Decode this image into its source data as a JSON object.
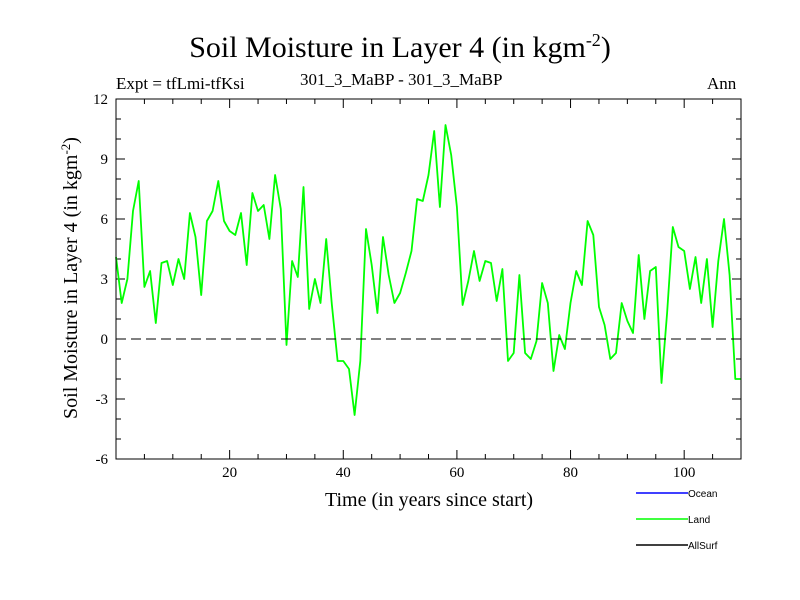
{
  "chart_data": {
    "type": "line",
    "title_main": "Soil Moisture in Layer 4 (in kgm",
    "title_sup": "-2",
    "title_close": ")",
    "experiment": "Expt = tfLmi-tfKsi",
    "subtitle": "301_3_MaBP - 301_3_MaBP",
    "season": "Ann",
    "xlabel": "Time (in years since start)",
    "ylabel_main": "Soil Moisture in Layer 4 (in kgm",
    "ylabel_sup": "-2",
    "ylabel_close": ")",
    "xlim": [
      0,
      110
    ],
    "ylim": [
      -6,
      12
    ],
    "xticks": [
      20,
      40,
      60,
      80,
      100
    ],
    "yticks": [
      -6,
      -3,
      0,
      3,
      6,
      9,
      12
    ],
    "reference_line": 0,
    "legend": [
      {
        "name": "Ocean",
        "color": "#0000ff"
      },
      {
        "name": "Land",
        "color": "#00ff00"
      },
      {
        "name": "AllSurf",
        "color": "#000000"
      }
    ],
    "series": [
      {
        "name": "Land",
        "color": "#00ff00",
        "x": [
          0,
          1,
          2,
          3,
          4,
          5,
          6,
          7,
          8,
          9,
          10,
          11,
          12,
          13,
          14,
          15,
          16,
          17,
          18,
          19,
          20,
          21,
          22,
          23,
          24,
          25,
          26,
          27,
          28,
          29,
          30,
          31,
          32,
          33,
          34,
          35,
          36,
          37,
          38,
          39,
          40,
          41,
          42,
          43,
          44,
          45,
          46,
          47,
          48,
          49,
          50,
          51,
          52,
          53,
          54,
          55,
          56,
          57,
          58,
          59,
          60,
          61,
          62,
          63,
          64,
          65,
          66,
          67,
          68,
          69,
          70,
          71,
          72,
          73,
          74,
          75,
          76,
          77,
          78,
          79,
          80,
          81,
          82,
          83,
          84,
          85,
          86,
          87,
          88,
          89,
          90,
          91,
          92,
          93,
          94,
          95,
          96,
          97,
          98,
          99,
          100,
          101,
          102,
          103,
          104,
          105,
          106,
          107,
          108,
          109,
          110
        ],
        "values": [
          4.1,
          1.8,
          3.0,
          6.4,
          7.9,
          2.6,
          3.4,
          0.8,
          3.8,
          3.9,
          2.7,
          4.0,
          3.0,
          6.3,
          5.1,
          2.2,
          5.9,
          6.4,
          7.9,
          5.9,
          5.4,
          5.2,
          6.3,
          3.7,
          7.3,
          6.4,
          6.7,
          5.0,
          8.2,
          6.5,
          -0.3,
          3.9,
          3.1,
          7.6,
          1.5,
          3.0,
          1.8,
          5.0,
          1.7,
          -1.1,
          -1.1,
          -1.5,
          -3.8,
          -1.1,
          5.5,
          3.7,
          1.3,
          5.1,
          3.2,
          1.8,
          2.3,
          3.3,
          4.4,
          7.0,
          6.9,
          8.2,
          10.4,
          6.6,
          10.7,
          9.2,
          6.6,
          1.7,
          2.9,
          4.4,
          2.9,
          3.9,
          3.8,
          1.9,
          3.5,
          -1.1,
          -0.7,
          3.2,
          -0.7,
          -1.0,
          -0.1,
          2.8,
          1.8,
          -1.6,
          0.2,
          -0.5,
          1.8,
          3.4,
          2.7,
          5.9,
          5.2,
          1.6,
          0.7,
          -1.0,
          -0.7,
          1.8,
          0.9,
          0.3,
          4.2,
          1.0,
          3.4,
          3.6,
          -2.2,
          1.3,
          5.6,
          4.6,
          4.4,
          2.5,
          4.1,
          1.8,
          4.0,
          0.6,
          3.9,
          6.0,
          3.2,
          -2.0,
          -2.0
        ]
      }
    ]
  }
}
